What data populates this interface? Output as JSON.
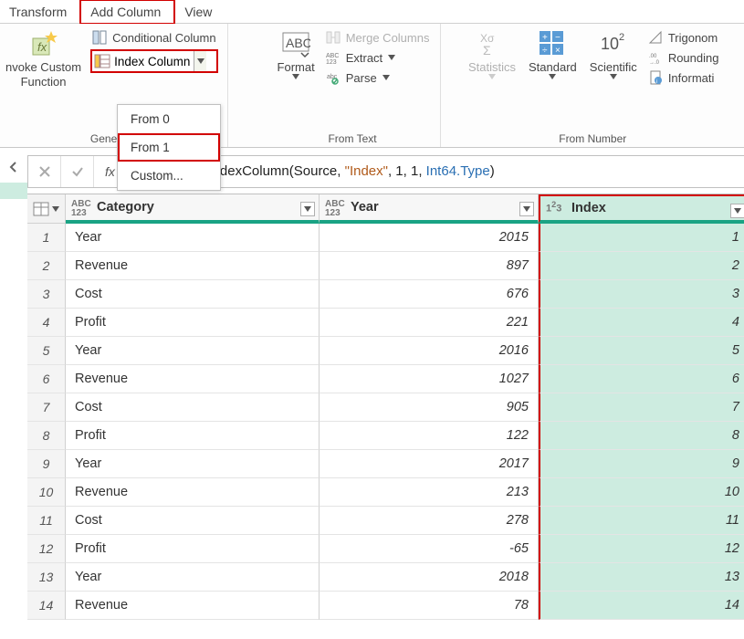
{
  "tabs": {
    "transform": "Transform",
    "add_column": "Add Column",
    "view": "View"
  },
  "ribbon": {
    "general": {
      "invoke_custom": "nvoke Custom\nFunction",
      "label": "General",
      "conditional_column": "Conditional Column",
      "index_column": "Index Column",
      "index_menu": {
        "from0": "From 0",
        "from1": "From 1",
        "custom": "Custom..."
      }
    },
    "from_text": {
      "format": "Format",
      "merge_columns": "Merge Columns",
      "extract": "Extract",
      "parse": "Parse",
      "label": "From Text"
    },
    "from_number": {
      "statistics": "Statistics",
      "standard": "Standard",
      "scientific": "Scientific",
      "trig": "Trigonom",
      "rounding": "Rounding",
      "info": "Informati",
      "label": "From Number"
    }
  },
  "formula": {
    "prefix": "= Table.AddIndexColumn(Source, ",
    "str": "\"Index\"",
    "mid": ", 1, 1, ",
    "type": "Int64.Type",
    "suffix": ")"
  },
  "columns": {
    "category": "Category",
    "year": "Year",
    "index": "Index"
  },
  "rows": [
    {
      "n": "1",
      "cat": "Year",
      "year": "2015",
      "idx": "1"
    },
    {
      "n": "2",
      "cat": "Revenue",
      "year": "897",
      "idx": "2"
    },
    {
      "n": "3",
      "cat": "Cost",
      "year": "676",
      "idx": "3"
    },
    {
      "n": "4",
      "cat": "Profit",
      "year": "221",
      "idx": "4"
    },
    {
      "n": "5",
      "cat": "Year",
      "year": "2016",
      "idx": "5"
    },
    {
      "n": "6",
      "cat": "Revenue",
      "year": "1027",
      "idx": "6"
    },
    {
      "n": "7",
      "cat": "Cost",
      "year": "905",
      "idx": "7"
    },
    {
      "n": "8",
      "cat": "Profit",
      "year": "122",
      "idx": "8"
    },
    {
      "n": "9",
      "cat": "Year",
      "year": "2017",
      "idx": "9"
    },
    {
      "n": "10",
      "cat": "Revenue",
      "year": "213",
      "idx": "10"
    },
    {
      "n": "11",
      "cat": "Cost",
      "year": "278",
      "idx": "11"
    },
    {
      "n": "12",
      "cat": "Profit",
      "year": "-65",
      "idx": "12"
    },
    {
      "n": "13",
      "cat": "Year",
      "year": "2018",
      "idx": "13"
    },
    {
      "n": "14",
      "cat": "Revenue",
      "year": "78",
      "idx": "14"
    }
  ],
  "colors": {
    "highlight_border": "#d20000",
    "teal": "#1aa384",
    "idx_bg": "#cdece0"
  }
}
